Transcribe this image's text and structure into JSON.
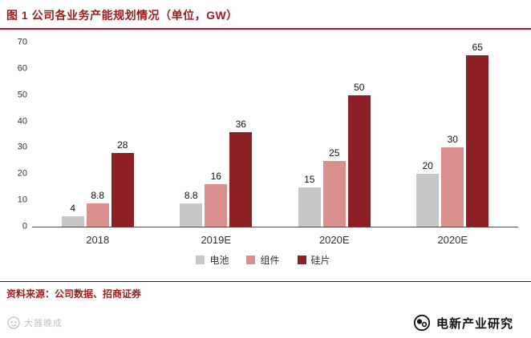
{
  "header": {
    "title": "图 1 公司各业务产能规划情况（单位，GW）"
  },
  "footer": {
    "source": "资料来源：公司数据、招商证券",
    "watermark": "大器晚成",
    "brand": "电新产业研究"
  },
  "colors": {
    "accent_red": "#9e1b1f",
    "bar_gray": "#c7c7c7",
    "bar_pink": "#d98f8b",
    "bar_darkred": "#8e1f24"
  },
  "chart_data": {
    "type": "bar",
    "title": "公司各业务产能规划情况（单位，GW）",
    "categories": [
      "2018",
      "2019E",
      "2020E",
      "2020E"
    ],
    "series": [
      {
        "name": "电池",
        "color": "#c7c7c7",
        "values": [
          4,
          8.8,
          15,
          20
        ]
      },
      {
        "name": "组件",
        "color": "#d98f8b",
        "values": [
          8.8,
          16,
          25,
          30
        ]
      },
      {
        "name": "硅片",
        "color": "#8e1f24",
        "values": [
          28,
          36,
          50,
          65
        ]
      }
    ],
    "xlabel": "",
    "ylabel": "",
    "ylim": [
      0,
      70
    ],
    "yticks": [
      0,
      10,
      20,
      30,
      40,
      50,
      60,
      70
    ],
    "grid": false,
    "legend_position": "bottom"
  }
}
